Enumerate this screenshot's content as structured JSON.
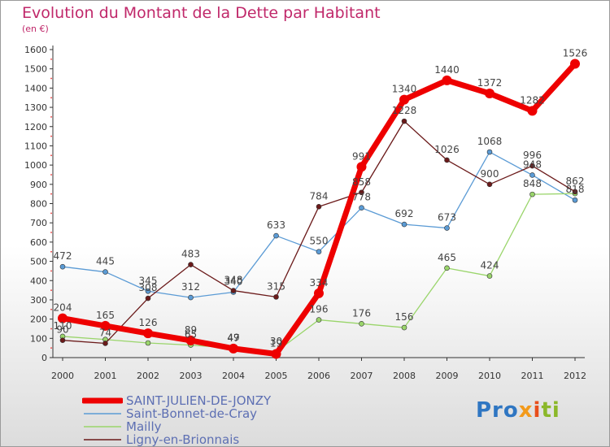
{
  "title": "Evolution du Montant de la Dette par Habitant",
  "subtitle": "(en €)",
  "chart_data": {
    "type": "line",
    "title": "Evolution du Montant de la Dette par Habitant",
    "subtitle": "(en €)",
    "xlabel": "",
    "ylabel": "",
    "categories": [
      "2000",
      "2001",
      "2002",
      "2003",
      "2004",
      "2005",
      "2006",
      "2007",
      "2008",
      "2009",
      "2010",
      "2011",
      "2012"
    ],
    "y_ticks": [
      0,
      100,
      200,
      300,
      400,
      500,
      600,
      700,
      800,
      900,
      1000,
      1100,
      1200,
      1300,
      1400,
      1500,
      1600
    ],
    "ylim": [
      0,
      1600
    ],
    "grid": false,
    "series": [
      {
        "name": "SAINT-JULIEN-DE-JONZY",
        "color": "#ee0000",
        "width": 7,
        "marker": 6,
        "values": [
          204,
          165,
          126,
          89,
          47,
          19,
          334,
          991,
          1340,
          1440,
          1372,
          1282,
          1526
        ],
        "labels": [
          "204",
          "165",
          "126",
          "89",
          "47",
          "19",
          "334",
          "991",
          "1340",
          "1440",
          "1372",
          "1282",
          "1526"
        ]
      },
      {
        "name": "Saint-Bonnet-de-Cray",
        "color": "#5b9bd5",
        "width": 1.3,
        "marker": 3,
        "values": [
          472,
          445,
          345,
          312,
          340,
          633,
          550,
          778,
          692,
          673,
          1068,
          948,
          818
        ],
        "labels": [
          "472",
          "445",
          "345",
          "312",
          "340",
          "633",
          "550",
          "778",
          "692",
          "673",
          "1068",
          "948",
          "818"
        ]
      },
      {
        "name": "Mailly",
        "color": "#9ad56b",
        "width": 1.3,
        "marker": 3,
        "values": [
          110,
          94,
          76,
          65,
          49,
          30,
          196,
          176,
          156,
          465,
          424,
          848,
          852
        ],
        "labels": [
          "110",
          "",
          "",
          "65",
          "49",
          "30",
          "196",
          "176",
          "156",
          "465",
          "424",
          "848",
          ""
        ]
      },
      {
        "name": "Ligny-en-Brionnais",
        "color": "#6b1a1a",
        "width": 1.3,
        "marker": 3,
        "values": [
          90,
          74,
          308,
          483,
          348,
          315,
          784,
          858,
          1228,
          1026,
          900,
          996,
          862
        ],
        "labels": [
          "90",
          "74",
          "308",
          "483",
          "348",
          "315",
          "784",
          "858",
          "1228",
          "1026",
          "900",
          "996",
          "862"
        ]
      }
    ],
    "legend_position": "bottom-left"
  },
  "logo": {
    "part1": "Pro",
    "part2": "x",
    "part3": "i",
    "part4": "ti"
  }
}
